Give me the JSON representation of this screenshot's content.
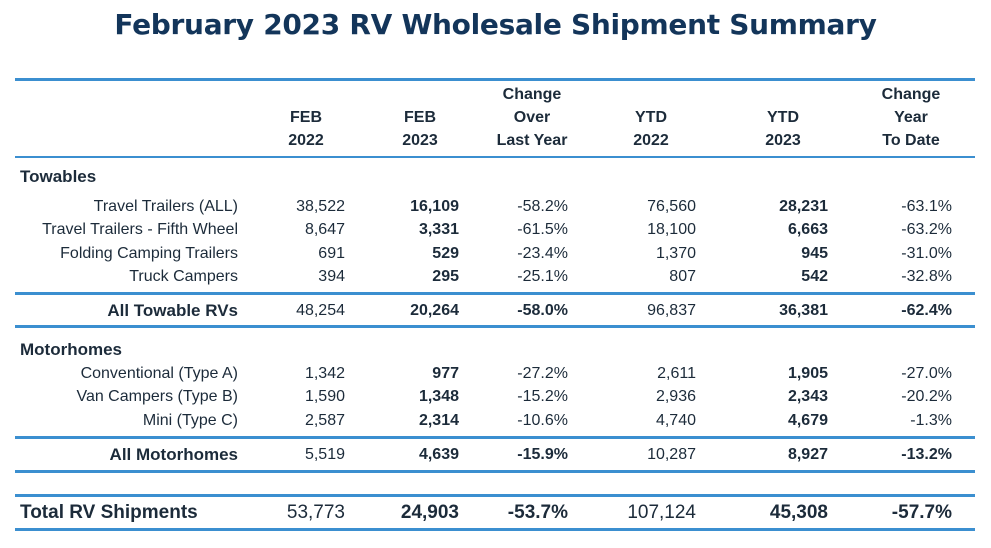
{
  "title": "February 2023 RV Wholesale Shipment Summary",
  "headers": [
    [
      "",
      "FEB",
      "2022"
    ],
    [
      "",
      "FEB",
      "2023"
    ],
    [
      "Change",
      "Over",
      "Last Year"
    ],
    [
      "",
      "YTD",
      "2022"
    ],
    [
      "",
      "YTD",
      "2023"
    ],
    [
      "Change",
      "Year",
      "To Date"
    ]
  ],
  "towables": {
    "heading": "Towables",
    "rows": [
      {
        "label": "Travel Trailers (ALL)",
        "values": [
          "38,522",
          "16,109",
          "-58.2%",
          "76,560",
          "28,231",
          "-63.1%"
        ]
      },
      {
        "label": "Travel Trailers - Fifth Wheel",
        "values": [
          "8,647",
          "3,331",
          "-61.5%",
          "18,100",
          "6,663",
          "-63.2%"
        ]
      },
      {
        "label": "Folding Camping Trailers",
        "values": [
          "691",
          "529",
          "-23.4%",
          "1,370",
          "945",
          "-31.0%"
        ]
      },
      {
        "label": "Truck Campers",
        "values": [
          "394",
          "295",
          "-25.1%",
          "807",
          "542",
          "-32.8%"
        ]
      }
    ],
    "total": {
      "label": "All Towable RVs",
      "values": [
        "48,254",
        "20,264",
        "-58.0%",
        "96,837",
        "36,381",
        "-62.4%"
      ]
    }
  },
  "motorhomes": {
    "heading": "Motorhomes",
    "rows": [
      {
        "label": "Conventional (Type A)",
        "values": [
          "1,342",
          "977",
          "-27.2%",
          "2,611",
          "1,905",
          "-27.0%"
        ]
      },
      {
        "label": "Van Campers (Type B)",
        "values": [
          "1,590",
          "1,348",
          "-15.2%",
          "2,936",
          "2,343",
          "-20.2%"
        ]
      },
      {
        "label": "Mini (Type C)",
        "values": [
          "2,587",
          "2,314",
          "-10.6%",
          "4,740",
          "4,679",
          "-1.3%"
        ]
      }
    ],
    "total": {
      "label": "All Motorhomes",
      "values": [
        "5,519",
        "4,639",
        "-15.9%",
        "10,287",
        "8,927",
        "-13.2%"
      ]
    }
  },
  "grand_total": {
    "label": "Total RV Shipments",
    "values": [
      "53,773",
      "24,903",
      "-53.7%",
      "107,124",
      "45,308",
      "-57.7%"
    ]
  },
  "colors": {
    "title": "#13355a",
    "rule": "#3b8fd0",
    "text": "#1c2b3a"
  }
}
